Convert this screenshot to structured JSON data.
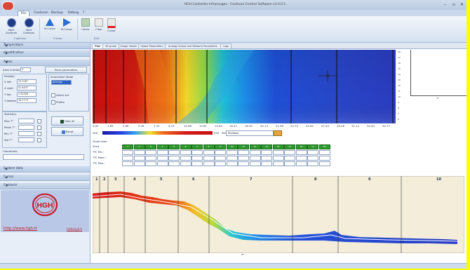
{
  "window": {
    "title": "HGH Controller Infrarouges - Coolscan Control Software v3.0.0.1",
    "controls": [
      "–",
      "▫",
      "✕"
    ]
  },
  "menu": {
    "items": [
      "File",
      "Coolscan",
      "Backup",
      "Debug",
      "Rotary",
      "?"
    ]
  },
  "ribbon": {
    "buttons": [
      {
        "label": "Start Coolscan",
        "icon": "power-icon"
      },
      {
        "label": "Start Coolscan",
        "icon": "power-icon"
      },
      {
        "label": "M.Cursor",
        "icon": "cursor-up-icon"
      },
      {
        "label": "M.Cursor",
        "icon": "cursor-right-icon"
      },
      {
        "label": "Cache",
        "icon": "edit-icon"
      },
      {
        "label": "Clear",
        "icon": "edit-icon"
      },
      {
        "label": "Cursor",
        "icon": "delete-icon"
      }
    ],
    "groups": [
      "Coolscan",
      "Cursor",
      "Edit"
    ]
  },
  "left_panel": {
    "sections": [
      "Temperature",
      "Identification",
      "Areas",
      "System data",
      "Cursor",
      "Contacts"
    ],
    "areas": {
      "area_number_label": "Area number",
      "area_number_value": "3",
      "save_button": "Save parameters",
      "position_title": "Position",
      "fields": [
        {
          "label": "X left",
          "value": "23.2067"
        },
        {
          "label": "X right",
          "value": "31.4437"
        },
        {
          "label": "Y top",
          "value": "1.02328"
        },
        {
          "label": "Y bottom",
          "value": "18.2773"
        }
      ],
      "alarm_title": "Acquisition Mode",
      "alarm_value": "Average",
      "checks": [
        "Alarm set",
        "Profile"
      ],
      "stat_title": "Statistics",
      "stats": [
        "Max T°",
        "Mean T°",
        "Min T°",
        "Std T°"
      ],
      "buttons": [
        "Hide all",
        "Reset"
      ],
      "comments_label": "Comments"
    },
    "link": "http://www.hgh.fr",
    "link2": "turbanyd.h"
  },
  "main": {
    "tabs": [
      "Plot",
      "3D graph",
      "Image Viewer",
      "Global Parameters",
      "Analog Output and Network Parameters",
      "Logs"
    ],
    "x_ticks": [
      "0.00",
      "1.83",
      "3.66",
      "5.49",
      "7.32",
      "9.15",
      "10.98",
      "12.81",
      "14.64",
      "16.47",
      "18.30",
      "20.13",
      "21.96",
      "23.79",
      "25.62",
      "27.45",
      "29.28",
      "31.11",
      "32.94",
      "34.77"
    ],
    "palette_label": "Palette",
    "palette_select": "Rainbow",
    "cbar_left": "400",
    "cbar_right": "550",
    "zone_header": "Zones data",
    "zone_rows": [
      "Zone",
      "TTC Min :",
      "TTC Mean :",
      "TTC Max :"
    ],
    "zone_numbers": [
      "1",
      "2",
      "3",
      "4",
      "5",
      "6",
      "7",
      "8",
      "9",
      "10",
      "11",
      "12",
      "13",
      "14",
      "15",
      "16",
      "17",
      "18"
    ],
    "profile_zones": [
      "1",
      "2",
      "3",
      "4",
      "5",
      "6",
      "7",
      "8",
      "9",
      "10"
    ],
    "profile_axis": "m"
  }
}
